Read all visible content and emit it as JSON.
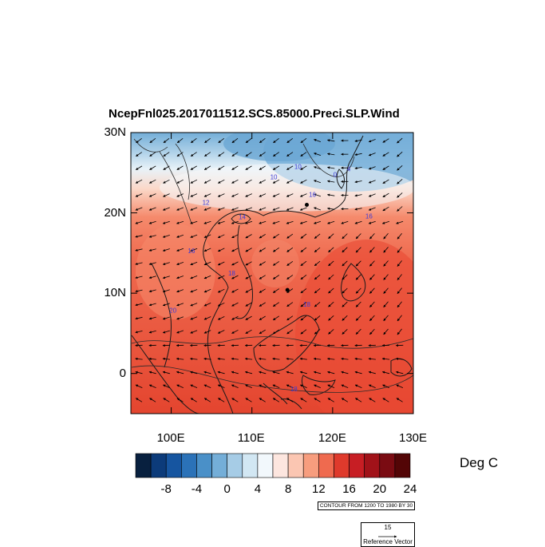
{
  "title": "NcepFnl025.2017011512.SCS.85000.Preci.SLP.Wind",
  "axes": {
    "y_ticks": [
      {
        "label": "30N",
        "lat": 30
      },
      {
        "label": "20N",
        "lat": 20
      },
      {
        "label": "10N",
        "lat": 10
      },
      {
        "label": "0",
        "lat": 0
      }
    ],
    "x_ticks": [
      {
        "label": "100E",
        "lon": 100
      },
      {
        "label": "110E",
        "lon": 110
      },
      {
        "label": "120E",
        "lon": 120
      },
      {
        "label": "130E",
        "lon": 130
      }
    ],
    "lon_range": [
      95,
      130
    ],
    "lat_range": [
      -5,
      30
    ]
  },
  "colorbar": {
    "units": "Deg C",
    "labels": [
      "-8",
      "-4",
      "0",
      "4",
      "8",
      "12",
      "16",
      "20",
      "24"
    ],
    "colors": [
      "#08203f",
      "#0c3b7a",
      "#1655a0",
      "#2b72b8",
      "#4a90c8",
      "#74aed8",
      "#a6cce6",
      "#d2e7f3",
      "#f2f8fc",
      "#fde6df",
      "#fbc6b2",
      "#f79d7e",
      "#ef6a4f",
      "#df3a2c",
      "#c71e24",
      "#a11219",
      "#7a0b12",
      "#530506"
    ]
  },
  "contour_note": "CONTOUR FROM 1200 TO 1980 BY 30",
  "reference_vector": {
    "magnitude": "15",
    "label": "Reference Vector"
  },
  "map_labels": [
    {
      "text": "0",
      "lon": 120.3,
      "lat": 24.5
    },
    {
      "text": "4",
      "lon": 122.0,
      "lat": 25.2
    },
    {
      "text": "10",
      "lon": 112.7,
      "lat": 24.2
    },
    {
      "text": "10",
      "lon": 115.7,
      "lat": 25.5
    },
    {
      "text": "12",
      "lon": 104.3,
      "lat": 21.0
    },
    {
      "text": "16",
      "lon": 117.5,
      "lat": 22.0
    },
    {
      "text": "14",
      "lon": 108.8,
      "lat": 19.2
    },
    {
      "text": "16",
      "lon": 124.5,
      "lat": 19.3
    },
    {
      "text": "16",
      "lon": 102.5,
      "lat": 15.0
    },
    {
      "text": "18",
      "lon": 107.5,
      "lat": 12.2
    },
    {
      "text": "18",
      "lon": 116.8,
      "lat": 8.3
    },
    {
      "text": "20",
      "lon": 100.2,
      "lat": 7.6
    },
    {
      "text": "18",
      "lon": 115.2,
      "lat": -2.2
    }
  ],
  "cities": [
    {
      "name": "A",
      "lon": 116.8,
      "lat": 21.0
    },
    {
      "name": "B",
      "lon": 114.4,
      "lat": 10.4
    }
  ],
  "colors": {
    "frame": "#000000",
    "vector": "#000000",
    "label": "#3b3bd8"
  }
}
